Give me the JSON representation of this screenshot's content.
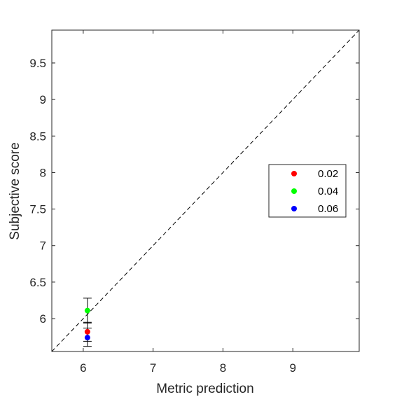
{
  "chart_data": {
    "type": "scatter",
    "title": "",
    "xlabel": "Metric prediction",
    "ylabel": "Subjective score",
    "xlim": [
      5.55,
      9.95
    ],
    "ylim": [
      5.55,
      9.95
    ],
    "xticks": [
      "6",
      "7",
      "8",
      "9"
    ],
    "yticks": [
      "6",
      "6.5",
      "7",
      "7.5",
      "8",
      "8.5",
      "9",
      "9.5"
    ],
    "grid": false,
    "reference_line": {
      "style": "dashed",
      "from": [
        5.55,
        5.55
      ],
      "to": [
        9.95,
        9.95
      ],
      "color": "#000000"
    },
    "legend_position": "right",
    "series": [
      {
        "name": "0.02",
        "color": "#ff0000",
        "points": [
          {
            "x": 6.06,
            "y": 5.82,
            "err_low": 5.69,
            "err_high": 5.95
          }
        ]
      },
      {
        "name": "0.04",
        "color": "#00ff00",
        "points": [
          {
            "x": 6.06,
            "y": 6.11,
            "err_low": 5.94,
            "err_high": 6.28
          }
        ]
      },
      {
        "name": "0.06",
        "color": "#0000ff",
        "points": [
          {
            "x": 6.06,
            "y": 5.74,
            "err_low": 5.62,
            "err_high": 5.87
          }
        ]
      }
    ]
  }
}
